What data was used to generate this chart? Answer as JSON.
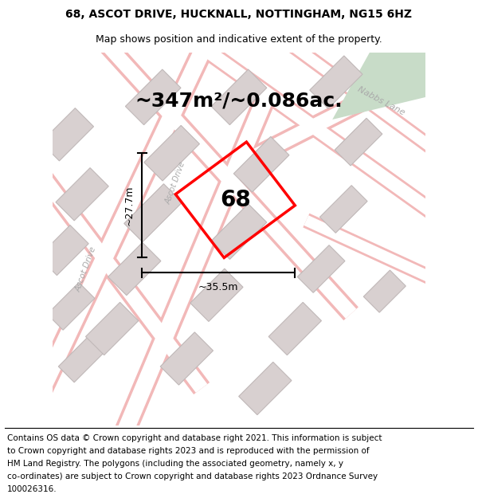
{
  "title_line1": "68, ASCOT DRIVE, HUCKNALL, NOTTINGHAM, NG15 6HZ",
  "title_line2": "Map shows position and indicative extent of the property.",
  "area_text": "~347m²/~0.086ac.",
  "label_68": "68",
  "dim_height": "~27.7m",
  "dim_width": "~35.5m",
  "footer_lines": [
    "Contains OS data © Crown copyright and database right 2021. This information is subject",
    "to Crown copyright and database rights 2023 and is reproduced with the permission of",
    "HM Land Registry. The polygons (including the associated geometry, namely x, y",
    "co-ordinates) are subject to Crown copyright and database rights 2023 Ordnance Survey",
    "100026316."
  ],
  "map_bg": "#f0ece8",
  "road_color_pink": "#f2b8b8",
  "building_color": "#d8d0d0",
  "building_edge": "#c0b8b8",
  "green_area": "#c8dcc8",
  "property_color": "#ff0000",
  "dim_line_color": "#000000",
  "road_white": "#ffffff",
  "title_fontsize": 10,
  "subtitle_fontsize": 9,
  "area_fontsize": 18,
  "label_fontsize": 20,
  "dim_fontsize": 9,
  "footer_fontsize": 7.5,
  "road_label_color": "#aaaaaa",
  "nabbs_lane_label": "Nabbs Lane",
  "ascot_drive_label1": "Ascot Drive",
  "ascot_drive_label2": "Ascot Drive"
}
